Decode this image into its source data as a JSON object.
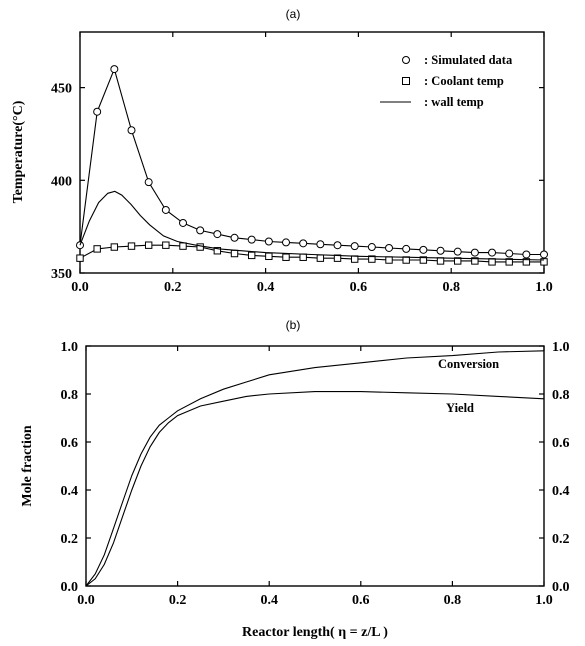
{
  "chart_data": [
    {
      "type": "line",
      "panel_label": "(a)",
      "title": "",
      "xlabel": "",
      "ylabel": "Temperature(°C)",
      "xlim": [
        0.0,
        1.0
      ],
      "ylim": [
        350,
        480
      ],
      "xticks": [
        "0.0",
        "0.2",
        "0.4",
        "0.6",
        "0.8",
        "1.0"
      ],
      "yticks": [
        "350",
        "400",
        "450"
      ],
      "legend_position": "top-right",
      "series": [
        {
          "name": ": Simulated data",
          "marker": "circle",
          "x": [
            0.0,
            0.037,
            0.074,
            0.111,
            0.148,
            0.185,
            0.222,
            0.259,
            0.296,
            0.333,
            0.37,
            0.407,
            0.444,
            0.481,
            0.518,
            0.555,
            0.592,
            0.629,
            0.666,
            0.703,
            0.74,
            0.777,
            0.814,
            0.851,
            0.888,
            0.925,
            0.962,
            1.0
          ],
          "y": [
            365,
            437,
            460,
            427,
            399,
            384,
            377,
            373,
            371,
            369,
            368,
            367,
            366.5,
            366,
            365.5,
            365,
            364.5,
            364,
            363.5,
            363,
            362.5,
            362,
            361.5,
            361,
            361,
            360.5,
            360,
            360
          ]
        },
        {
          "name": ": Coolant temp",
          "marker": "square",
          "x": [
            0.0,
            0.037,
            0.074,
            0.111,
            0.148,
            0.185,
            0.222,
            0.259,
            0.296,
            0.333,
            0.37,
            0.407,
            0.444,
            0.481,
            0.518,
            0.555,
            0.592,
            0.629,
            0.666,
            0.703,
            0.74,
            0.777,
            0.814,
            0.851,
            0.888,
            0.925,
            0.962,
            1.0
          ],
          "y": [
            358,
            363,
            364,
            364.5,
            365,
            365,
            364.5,
            364,
            362,
            360.5,
            359.5,
            359,
            358.5,
            358.5,
            358,
            358,
            357.5,
            357.5,
            357,
            357,
            357,
            356.5,
            356.5,
            356.5,
            356,
            356,
            356,
            356
          ]
        },
        {
          "name": ": wall temp",
          "marker": "none",
          "x": [
            0.0,
            0.02,
            0.04,
            0.06,
            0.075,
            0.09,
            0.11,
            0.13,
            0.15,
            0.18,
            0.21,
            0.25,
            0.3,
            0.35,
            0.4,
            0.5,
            0.6,
            0.7,
            0.8,
            0.9,
            1.0
          ],
          "y": [
            365,
            378,
            388,
            393,
            394,
            392,
            387,
            381,
            376,
            370,
            367,
            365,
            363,
            362,
            361,
            360,
            359,
            358.5,
            358,
            357.5,
            357
          ]
        }
      ]
    },
    {
      "type": "line",
      "panel_label": "(b)",
      "title": "",
      "xlabel": "Reactor length( η = z/L )",
      "ylabel": "Mole fraction",
      "xlim": [
        0.0,
        1.0
      ],
      "ylim": [
        0.0,
        1.0
      ],
      "xticks": [
        "0.0",
        "0.2",
        "0.4",
        "0.6",
        "0.8",
        "1.0"
      ],
      "yticks": [
        "0.0",
        "0.2",
        "0.4",
        "0.6",
        "0.8",
        "1.0"
      ],
      "series": [
        {
          "name": "Conversion",
          "x": [
            0.0,
            0.02,
            0.04,
            0.06,
            0.08,
            0.1,
            0.12,
            0.14,
            0.16,
            0.18,
            0.2,
            0.25,
            0.3,
            0.35,
            0.4,
            0.5,
            0.6,
            0.7,
            0.8,
            0.9,
            1.0
          ],
          "y": [
            0.0,
            0.05,
            0.13,
            0.24,
            0.35,
            0.46,
            0.55,
            0.62,
            0.67,
            0.7,
            0.73,
            0.78,
            0.82,
            0.85,
            0.88,
            0.91,
            0.93,
            0.95,
            0.96,
            0.975,
            0.98
          ]
        },
        {
          "name": "Yield",
          "x": [
            0.0,
            0.02,
            0.04,
            0.06,
            0.08,
            0.1,
            0.12,
            0.14,
            0.16,
            0.18,
            0.2,
            0.25,
            0.3,
            0.35,
            0.4,
            0.5,
            0.6,
            0.7,
            0.8,
            0.9,
            1.0
          ],
          "y": [
            0.0,
            0.03,
            0.09,
            0.18,
            0.29,
            0.4,
            0.5,
            0.58,
            0.64,
            0.68,
            0.71,
            0.75,
            0.77,
            0.79,
            0.8,
            0.81,
            0.81,
            0.805,
            0.8,
            0.79,
            0.78
          ]
        }
      ]
    }
  ]
}
